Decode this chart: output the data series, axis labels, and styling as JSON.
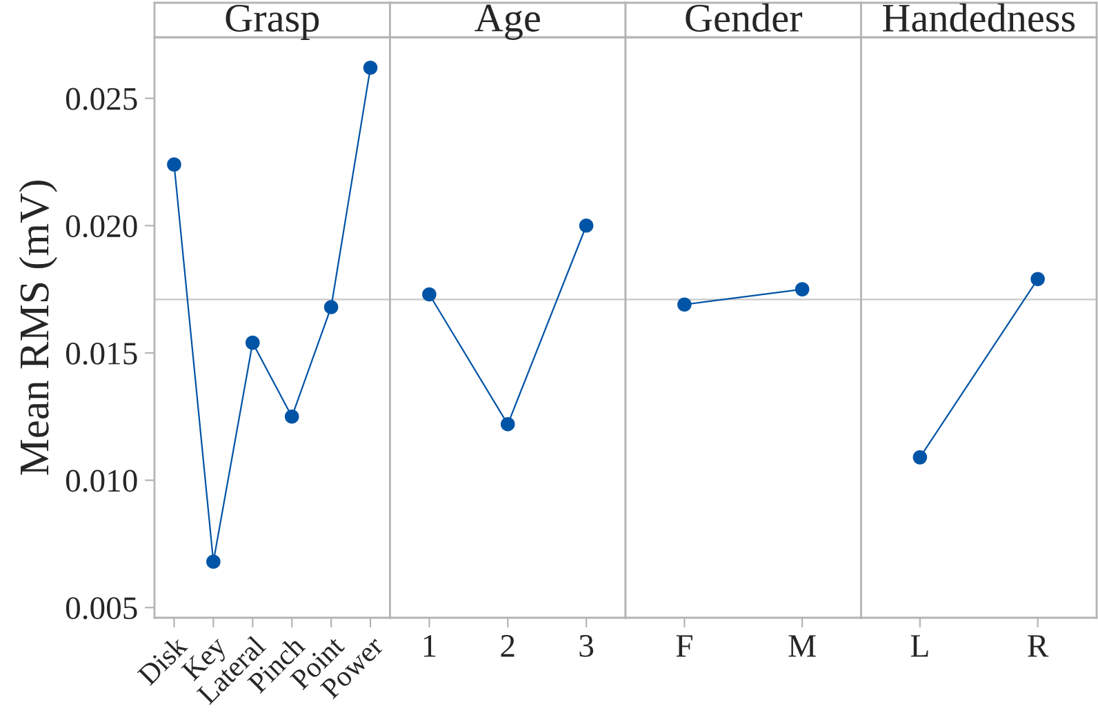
{
  "chart_data": [
    {
      "type": "line",
      "title": "Grasp",
      "ylabel": "Mean RMS (mV)",
      "categories": [
        "Disk",
        "Key",
        "Lateral",
        "Pinch",
        "Point",
        "Power"
      ],
      "series": [
        {
          "color": "#0054a6",
          "values": [
            0.0224,
            0.0068,
            0.0154,
            0.0125,
            0.0168,
            0.0262
          ]
        }
      ],
      "ylim": [
        0.0046,
        0.0274
      ],
      "yticks": [
        {
          "value": 0.005,
          "label": "0.005"
        },
        {
          "value": 0.01,
          "label": "0.010"
        },
        {
          "value": 0.015,
          "label": "0.015"
        },
        {
          "value": 0.02,
          "label": "0.020"
        },
        {
          "value": 0.025,
          "label": "0.025"
        }
      ],
      "ref_lines": [
        {
          "axis": "y",
          "value": 0.0171,
          "color": "#c8c8c8"
        }
      ],
      "marker": "circle",
      "grid": false
    },
    {
      "type": "line",
      "title": "Age",
      "categories": [
        "1",
        "2",
        "3"
      ],
      "series": [
        {
          "color": "#0054a6",
          "values": [
            0.0173,
            0.0122,
            0.02
          ]
        }
      ],
      "ylim": [
        0.0046,
        0.0274
      ],
      "ref_lines": [
        {
          "axis": "y",
          "value": 0.0171,
          "color": "#c8c8c8"
        }
      ],
      "marker": "circle",
      "grid": false,
      "tick_labels": "x"
    },
    {
      "type": "line",
      "title": "Gender",
      "categories": [
        "F",
        "M"
      ],
      "series": [
        {
          "color": "#0054a6",
          "values": [
            0.0169,
            0.0175
          ]
        }
      ],
      "ylim": [
        0.0046,
        0.0274
      ],
      "ref_lines": [
        {
          "axis": "y",
          "value": 0.0171,
          "color": "#c8c8c8"
        }
      ],
      "marker": "circle",
      "grid": false,
      "tick_labels": "x"
    },
    {
      "type": "line",
      "title": "Handedness",
      "categories": [
        "L",
        "R"
      ],
      "series": [
        {
          "color": "#0054a6",
          "values": [
            0.0109,
            0.0179
          ]
        }
      ],
      "ylim": [
        0.0046,
        0.0274
      ],
      "ref_lines": [
        {
          "axis": "y",
          "value": 0.0171,
          "color": "#c8c8c8"
        }
      ],
      "marker": "circle",
      "grid": false,
      "tick_labels": "x"
    }
  ]
}
